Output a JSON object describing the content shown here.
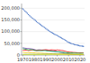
{
  "chart_data": {
    "type": "line",
    "x": [
      1970,
      1971,
      1972,
      1973,
      1974,
      1975,
      1976,
      1977,
      1978,
      1979,
      1980,
      1981,
      1982,
      1983,
      1984,
      1985,
      1986,
      1987,
      1988,
      1989,
      1990,
      1991,
      1992,
      1993,
      1994,
      1995,
      1996,
      1997,
      1998,
      1999,
      2000,
      2001,
      2002,
      2003,
      2004,
      2005,
      2006,
      2007,
      2008,
      2009,
      2010,
      2011,
      2012,
      2013,
      2014,
      2015,
      2016,
      2017,
      2018,
      2019,
      2020,
      2021,
      2022,
      2023
    ],
    "series": [
      {
        "color": "#7030A0",
        "values": [
          31200,
          30000,
          29000,
          28500,
          28000,
          28000,
          27000,
          26500,
          26000,
          25000,
          23500,
          22000,
          21000,
          21500,
          22000,
          22000,
          21500,
          21000,
          21000,
          21000,
          20700,
          20000,
          19500,
          18500,
          18000,
          18100,
          17000,
          16500,
          16000,
          15000,
          14200,
          13500,
          13000,
          12000,
          11000,
          10500,
          9000,
          8000,
          7200,
          6500,
          5200,
          4500,
          3500,
          3000,
          2300,
          2000,
          1600,
          1300,
          1200,
          1100,
          1000,
          900,
          850,
          800
        ]
      },
      {
        "color": "#FF0000",
        "values": [
          20600,
          20500,
          20800,
          21000,
          20500,
          19000,
          20000,
          20500,
          21000,
          21500,
          20500,
          20000,
          19000,
          19500,
          20000,
          20000,
          20500,
          21000,
          21500,
          22000,
          22700,
          22000,
          21500,
          21000,
          21500,
          22000,
          21800,
          21500,
          21000,
          20500,
          22000,
          21000,
          20500,
          20000,
          19500,
          19000,
          17500,
          16500,
          15000,
          13500,
          13500,
          12500,
          12000,
          11500,
          11000,
          10800,
          10500,
          10000,
          9800,
          9500,
          9000,
          9500,
          9800,
          9700
        ]
      },
      {
        "color": "#00B050",
        "values": [
          27500,
          26000,
          25000,
          24000,
          23000,
          22000,
          22500,
          23000,
          23000,
          22000,
          20000,
          19500,
          19000,
          19000,
          19500,
          19000,
          18500,
          18700,
          19000,
          19000,
          18700,
          18000,
          17500,
          17000,
          16500,
          16000,
          15500,
          15200,
          14800,
          14500,
          14000,
          13500,
          13000,
          12500,
          12000,
          11500,
          11000,
          10800,
          10500,
          10000,
          9800,
          9500,
          9200,
          9000,
          8800,
          8600,
          8500,
          8200,
          8100,
          8000,
          7800,
          7900,
          8000,
          8100
        ]
      },
      {
        "color": "#FFC000",
        "values": [
          12000,
          11500,
          11000,
          10800,
          10500,
          10000,
          10000,
          9800,
          9500,
          9200,
          9000,
          8800,
          8500,
          8000,
          8000,
          8000,
          7800,
          7500,
          7200,
          7000,
          7000,
          6800,
          6500,
          6200,
          6000,
          6000,
          5800,
          5500,
          5200,
          5000,
          5000,
          4900,
          4800,
          4600,
          4500,
          4400,
          4200,
          4100,
          4000,
          3900,
          3800,
          3700,
          3500,
          3300,
          3200,
          3100,
          3000,
          2900,
          2800,
          2700,
          2600,
          2700,
          2750,
          2700
        ]
      },
      {
        "color": "#70AD47",
        "values": [
          3000,
          3050,
          3100,
          3150,
          3100,
          3100,
          3150,
          3200,
          3250,
          3300,
          3200,
          3200,
          3200,
          3250,
          3300,
          3300,
          3400,
          3500,
          3700,
          3800,
          3800,
          3850,
          3900,
          3950,
          4000,
          4000,
          4050,
          4100,
          4100,
          4100,
          4100,
          4100,
          4200,
          4150,
          4100,
          4050,
          4000,
          3950,
          3900,
          3850,
          3800,
          3750,
          3700,
          3650,
          3600,
          3550,
          3500,
          3400,
          3400,
          3300,
          3300,
          3300,
          3300,
          3300
        ]
      },
      {
        "color": "#FFFF00",
        "values": [
          220,
          200,
          180,
          160,
          150,
          160,
          140,
          120,
          100,
          80,
          70,
          55,
          40,
          25,
          18,
          20,
          15,
          10,
          8,
          6,
          5,
          4.5,
          4,
          3.8,
          3.5,
          4,
          3.8,
          3.5,
          3.2,
          3,
          3,
          3,
          3,
          3,
          3,
          3,
          3,
          3,
          3,
          3,
          3,
          3,
          3,
          3,
          3,
          3,
          3,
          3,
          3,
          3,
          3,
          3,
          3,
          3
        ]
      },
      {
        "color": "#4472C4",
        "marker": "point",
        "line_style": "none",
        "values": [
          197200,
          193000,
          188000,
          183000,
          178000,
          173000,
          168000,
          163000,
          159000,
          156000,
          152000,
          148000,
          143000,
          139000,
          136000,
          132000,
          128000,
          124000,
          121000,
          118000,
          114000,
          110000,
          106000,
          103000,
          100000,
          97000,
          94000,
          91000,
          88000,
          86000,
          84000,
          81000,
          78000,
          75000,
          72000,
          69000,
          67000,
          64000,
          61000,
          57000,
          54000,
          52000,
          50000,
          48000,
          47000,
          45000,
          44000,
          43000,
          42000,
          41000,
          39000,
          38500,
          38000,
          37000
        ]
      }
    ],
    "xlim": [
      1969,
      2024
    ],
    "xticks": [
      1970,
      1980,
      1990,
      2000,
      2010,
      2020
    ],
    "ylim": [
      0,
      220000
    ],
    "yticks": [
      0,
      {
        "value": 50000,
        "label": "50,000"
      },
      {
        "value": 100000,
        "label": "100,000"
      },
      {
        "value": 150000,
        "label": "150,000"
      },
      {
        "value": 200000,
        "label": "200,000"
      }
    ],
    "grid": "y"
  }
}
